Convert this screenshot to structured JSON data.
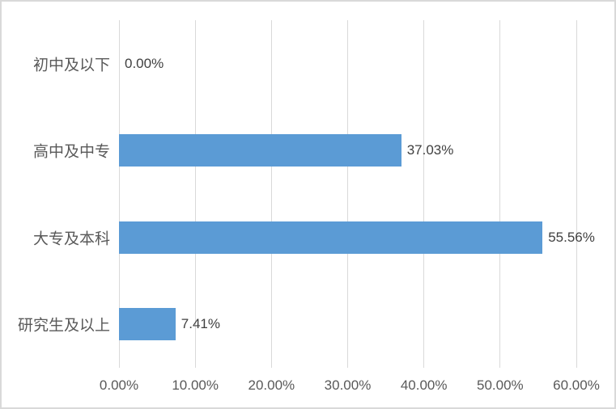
{
  "chart_data": {
    "type": "bar",
    "orientation": "horizontal",
    "title": "",
    "xlabel": "",
    "ylabel": "",
    "legend": "none",
    "grid": "vertical",
    "categories": [
      "初中及以下",
      "高中及中专",
      "大专及本科",
      "研究生及以上"
    ],
    "values": [
      0.0,
      37.03,
      55.56,
      7.41
    ],
    "value_labels": [
      "0.00%",
      "37.03%",
      "55.56%",
      "7.41%"
    ],
    "xlim": [
      0,
      60
    ],
    "x_tick_interval": 10,
    "x_tick_labels": [
      "0.00%",
      "10.00%",
      "20.00%",
      "30.00%",
      "40.00%",
      "50.00%",
      "60.00%"
    ],
    "colors": {
      "bar": "#5b9bd5",
      "gridline": "#d9d9d9",
      "frame_border": "#d9d9d9",
      "data_label_text": "#404040",
      "axis_text": "#595959",
      "background": "#ffffff"
    }
  }
}
